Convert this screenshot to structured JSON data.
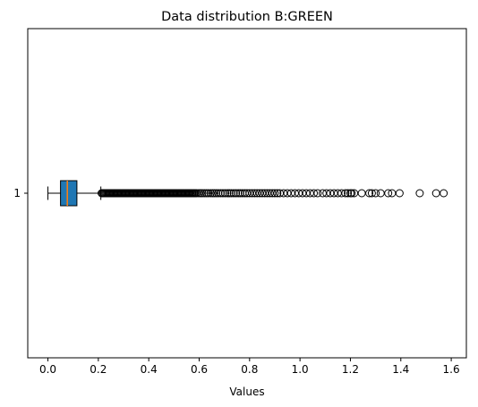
{
  "chart_data": {
    "type": "boxplot",
    "orientation": "horizontal",
    "title": "Data distribution B:GREEN",
    "xlabel": "Values",
    "ylabel": "",
    "xlim": [
      -0.08,
      1.66
    ],
    "xticks": [
      0.0,
      0.2,
      0.4,
      0.6,
      0.8,
      1.0,
      1.2,
      1.4,
      1.6
    ],
    "xtick_labels": [
      "0.0",
      "0.2",
      "0.4",
      "0.6",
      "0.8",
      "1.0",
      "1.2",
      "1.4",
      "1.6"
    ],
    "categories": [
      "1"
    ],
    "grid": false,
    "series": [
      {
        "category": "1",
        "whisker_low": 0.0,
        "q1": 0.05,
        "median": 0.077,
        "q3": 0.115,
        "whisker_high": 0.21,
        "outliers": [
          0.213,
          0.217,
          0.221,
          0.225,
          0.229,
          0.233,
          0.237,
          0.241,
          0.245,
          0.249,
          0.253,
          0.257,
          0.261,
          0.265,
          0.269,
          0.273,
          0.277,
          0.281,
          0.285,
          0.289,
          0.293,
          0.297,
          0.301,
          0.305,
          0.309,
          0.313,
          0.317,
          0.321,
          0.325,
          0.329,
          0.333,
          0.337,
          0.341,
          0.345,
          0.349,
          0.353,
          0.357,
          0.361,
          0.365,
          0.369,
          0.373,
          0.377,
          0.381,
          0.385,
          0.389,
          0.393,
          0.397,
          0.401,
          0.405,
          0.409,
          0.413,
          0.417,
          0.421,
          0.425,
          0.429,
          0.433,
          0.437,
          0.441,
          0.445,
          0.449,
          0.453,
          0.457,
          0.461,
          0.465,
          0.469,
          0.473,
          0.477,
          0.481,
          0.485,
          0.489,
          0.493,
          0.497,
          0.501,
          0.505,
          0.509,
          0.513,
          0.517,
          0.521,
          0.525,
          0.529,
          0.533,
          0.537,
          0.541,
          0.545,
          0.549,
          0.553,
          0.557,
          0.561,
          0.565,
          0.569,
          0.573,
          0.577,
          0.581,
          0.585,
          0.59,
          0.598,
          0.605,
          0.612,
          0.62,
          0.628,
          0.636,
          0.645,
          0.653,
          0.66,
          0.668,
          0.676,
          0.685,
          0.694,
          0.703,
          0.712,
          0.72,
          0.728,
          0.737,
          0.746,
          0.755,
          0.763,
          0.772,
          0.781,
          0.79,
          0.8,
          0.81,
          0.82,
          0.83,
          0.84,
          0.85,
          0.86,
          0.87,
          0.88,
          0.89,
          0.9,
          0.91,
          0.92,
          0.935,
          0.95,
          0.965,
          0.98,
          0.995,
          1.01,
          1.025,
          1.04,
          1.055,
          1.07,
          1.09,
          1.105,
          1.12,
          1.135,
          1.15,
          1.165,
          1.18,
          1.19,
          1.2,
          1.205,
          1.215,
          1.245,
          1.275,
          1.285,
          1.3,
          1.32,
          1.35,
          1.365,
          1.395,
          1.475,
          1.54,
          1.57
        ]
      }
    ],
    "colors": {
      "box_fill": "#1f77b4",
      "median": "#ff7f0e",
      "lines": "#000000",
      "background": "#ffffff"
    }
  }
}
